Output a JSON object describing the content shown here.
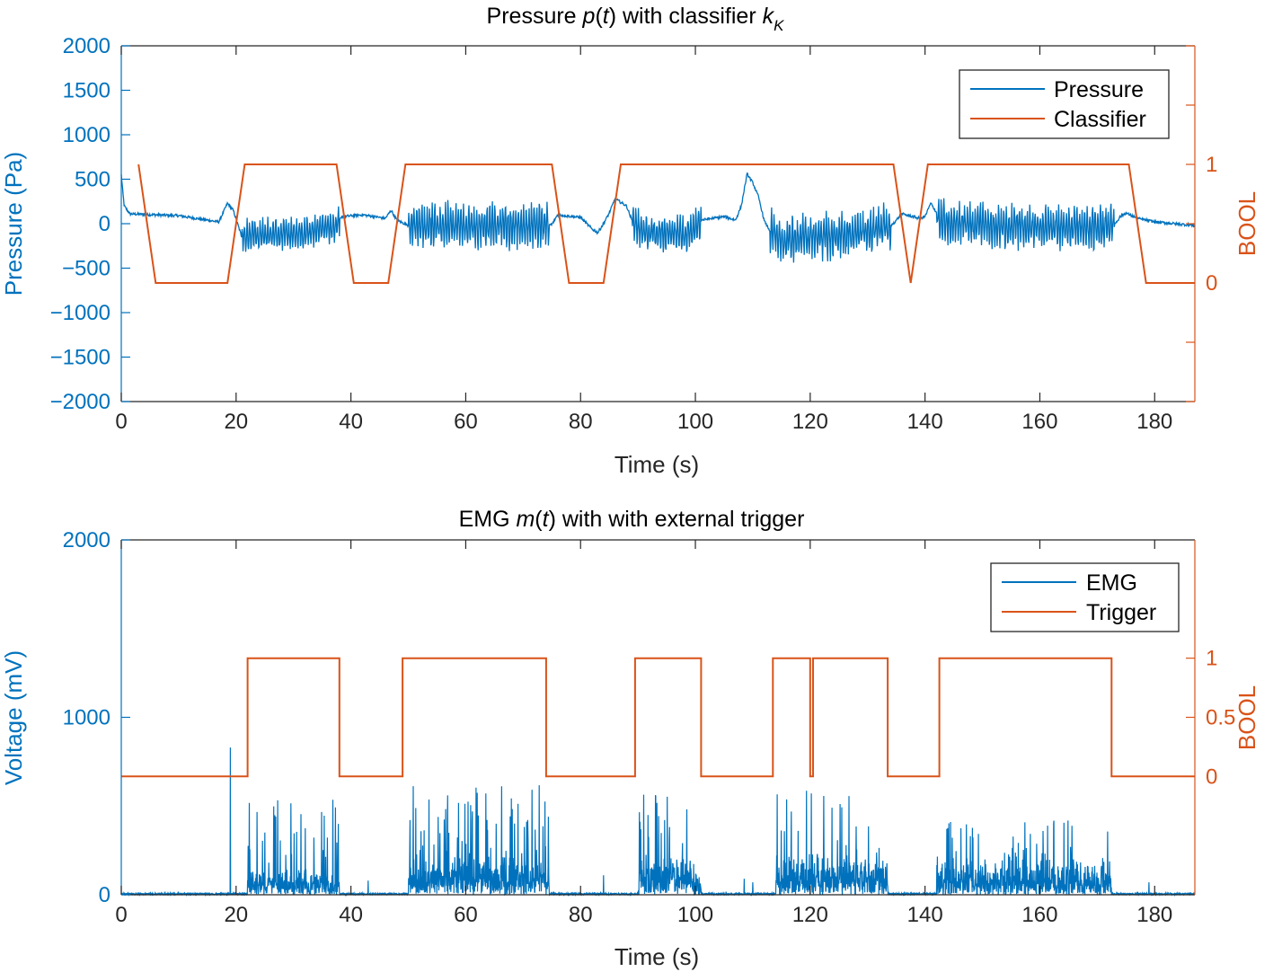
{
  "chart_data": [
    {
      "type": "line",
      "title_main": "Pressure ",
      "title_var": "p",
      "title_arg": "t",
      "title_rest": " with classifier ",
      "title_sym": "k",
      "title_sub": "K",
      "xlabel": "Time (s)",
      "ylabel_left": "Pressure (Pa)",
      "ylabel_right": "BOOL",
      "xlim": [
        0,
        187
      ],
      "ylim_left": [
        -2000,
        2000
      ],
      "ylim_right": [
        -1,
        2
      ],
      "x_ticks": [
        "0",
        "20",
        "40",
        "60",
        "80",
        "100",
        "120",
        "140",
        "160",
        "180"
      ],
      "y_left_ticks": [
        "2000",
        "1500",
        "1000",
        "500",
        "0",
        "−500",
        "−1000",
        "−1500",
        "−2000"
      ],
      "y_right_ticks": [
        "1",
        "0"
      ],
      "legend": [
        "Pressure",
        "Classifier"
      ],
      "colors": {
        "left": "#0072bd",
        "right": "#d95319"
      },
      "series": [
        {
          "name": "Pressure",
          "axis": "left",
          "baseline": [
            [
              0,
              550
            ],
            [
              0.5,
              200
            ],
            [
              1.5,
              110
            ],
            [
              10,
              90
            ],
            [
              17,
              20
            ],
            [
              18.5,
              230
            ],
            [
              19.5,
              150
            ],
            [
              21,
              -150
            ],
            [
              23,
              -120
            ],
            [
              30,
              -120
            ],
            [
              37,
              -40
            ],
            [
              38.5,
              80
            ],
            [
              42,
              100
            ],
            [
              46,
              60
            ],
            [
              47,
              150
            ],
            [
              48,
              40
            ],
            [
              50,
              -20
            ],
            [
              60,
              -20
            ],
            [
              70,
              -30
            ],
            [
              75,
              -10
            ],
            [
              76,
              100
            ],
            [
              80,
              70
            ],
            [
              82,
              -60
            ],
            [
              83,
              -100
            ],
            [
              84,
              0
            ],
            [
              85,
              120
            ],
            [
              86,
              280
            ],
            [
              88,
              200
            ],
            [
              89,
              30
            ],
            [
              91,
              -100
            ],
            [
              99,
              -120
            ],
            [
              101,
              40
            ],
            [
              105,
              80
            ],
            [
              107,
              40
            ],
            [
              108,
              200
            ],
            [
              109,
              560
            ],
            [
              110,
              460
            ],
            [
              111,
              300
            ],
            [
              112,
              30
            ],
            [
              113,
              -80
            ],
            [
              115,
              -200
            ],
            [
              120,
              -150
            ],
            [
              130,
              -90
            ],
            [
              134,
              -30
            ],
            [
              136,
              110
            ],
            [
              139,
              60
            ],
            [
              140,
              80
            ],
            [
              141,
              230
            ],
            [
              143,
              20
            ],
            [
              150,
              -20
            ],
            [
              160,
              -40
            ],
            [
              170,
              -40
            ],
            [
              173,
              -10
            ],
            [
              174,
              80
            ],
            [
              175,
              120
            ],
            [
              177,
              60
            ],
            [
              180,
              20
            ],
            [
              187,
              -20
            ]
          ],
          "oscillation_segments": [
            {
              "start": 21,
              "end": 38,
              "amplitude": [
                90,
                230
              ]
            },
            {
              "start": 50,
              "end": 74.5,
              "amplitude": [
                110,
                320
              ]
            },
            {
              "start": 89,
              "end": 101,
              "amplitude": [
                80,
                260
              ]
            },
            {
              "start": 113,
              "end": 134,
              "amplitude": [
                90,
                330
              ]
            },
            {
              "start": 142,
              "end": 173,
              "amplitude": [
                90,
                320
              ]
            }
          ]
        },
        {
          "name": "Classifier",
          "axis": "right",
          "x": [
            3,
            6,
            18.5,
            21.5,
            37.5,
            40.5,
            46.5,
            49.5,
            75,
            78,
            84,
            87,
            134.5,
            137.5,
            140.5,
            175.5,
            178.5,
            187
          ],
          "y": [
            1,
            0,
            0,
            1,
            1,
            0,
            0,
            1,
            1,
            0,
            0,
            1,
            1,
            0,
            1,
            1,
            0,
            0
          ]
        }
      ]
    },
    {
      "type": "line",
      "title_main": "EMG ",
      "title_var": "m",
      "title_arg": "t",
      "title_rest": " with with external trigger",
      "xlabel": "Time (s)",
      "ylabel_left": "Voltage (mV)",
      "ylabel_right": "BOOL",
      "xlim": [
        0,
        187
      ],
      "ylim_left": [
        0,
        2000
      ],
      "ylim_right": [
        -1,
        2
      ],
      "x_ticks": [
        "0",
        "20",
        "40",
        "60",
        "80",
        "100",
        "120",
        "140",
        "160",
        "180"
      ],
      "y_left_ticks": [
        "2000",
        "1000",
        "0"
      ],
      "y_right_ticks": [
        "1",
        "0.5",
        "0"
      ],
      "legend": [
        "EMG",
        "Trigger"
      ],
      "colors": {
        "left": "#0072bd",
        "right": "#d95319"
      },
      "series": [
        {
          "name": "EMG",
          "axis": "left",
          "noise_floor": 10,
          "spikes": [
            [
              19,
              830
            ],
            [
              43,
              80
            ],
            [
              84,
              110
            ],
            [
              108.5,
              90
            ],
            [
              110,
              70
            ],
            [
              179,
              70
            ]
          ],
          "burst_segments": [
            {
              "start": 22,
              "end": 38,
              "base": [
                60,
                150
              ],
              "peak": 620
            },
            {
              "start": 50,
              "end": 74.5,
              "base": [
                90,
                220
              ],
              "peak": 620
            },
            {
              "start": 90,
              "end": 101,
              "base": [
                70,
                250
              ],
              "peak": 610
            },
            {
              "start": 114,
              "end": 133.5,
              "base": [
                80,
                250
              ],
              "peak": 590
            },
            {
              "start": 142,
              "end": 172.5,
              "base": [
                50,
                220
              ],
              "peak": 420
            }
          ]
        },
        {
          "name": "Trigger",
          "axis": "right",
          "x": [
            0,
            22,
            22,
            38,
            38,
            49,
            49,
            74,
            74,
            89.5,
            89.5,
            101,
            101,
            113.5,
            113.5,
            120,
            120,
            120.5,
            120.5,
            133.5,
            133.5,
            142.5,
            142.5,
            172.5,
            172.5,
            187
          ],
          "y": [
            0,
            0,
            1,
            1,
            0,
            0,
            1,
            1,
            0,
            0,
            1,
            1,
            0,
            0,
            1,
            1,
            0,
            0,
            1,
            1,
            0,
            0,
            1,
            1,
            0,
            0
          ]
        }
      ]
    }
  ]
}
